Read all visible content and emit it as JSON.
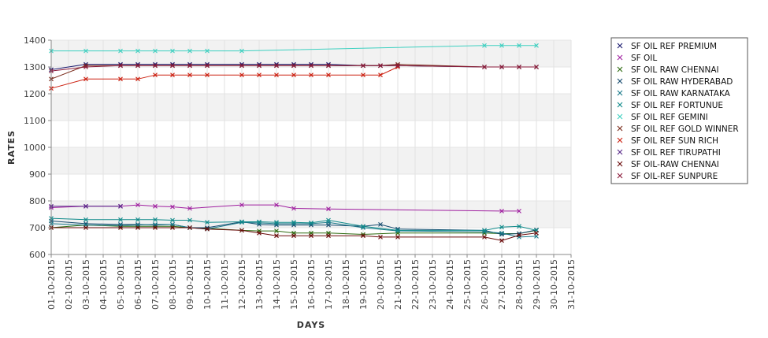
{
  "chart_data": {
    "type": "line",
    "xlabel": "DAYS",
    "ylabel": "RATES",
    "ylim": [
      600,
      1400
    ],
    "yticks": [
      600,
      700,
      800,
      900,
      1000,
      1100,
      1200,
      1300,
      1400
    ],
    "grid": "horizontal alternating bands, vertical lines",
    "legend_position": "right",
    "categories": [
      "01-10-2015",
      "02-10-2015",
      "03-10-2015",
      "04-10-2015",
      "05-10-2015",
      "06-10-2015",
      "07-10-2015",
      "08-10-2015",
      "09-10-2015",
      "10-10-2015",
      "11-10-2015",
      "12-10-2015",
      "13-10-2015",
      "14-10-2015",
      "15-10-2015",
      "16-10-2015",
      "17-10-2015",
      "18-10-2015",
      "19-10-2015",
      "20-10-2015",
      "21-10-2015",
      "22-10-2015",
      "23-10-2015",
      "24-10-2015",
      "25-10-2015",
      "26-10-2015",
      "27-10-2015",
      "28-10-2015",
      "29-10-2015",
      "30-10-2015",
      "31-10-2015"
    ],
    "series": [
      {
        "name": " SF OIL REF PREMIUM",
        "color": "#1a1a6e",
        "points": [
          [
            1,
            1290
          ],
          [
            3,
            1310
          ],
          [
            5,
            1310
          ],
          [
            6,
            1310
          ],
          [
            7,
            1310
          ],
          [
            8,
            1310
          ],
          [
            9,
            1310
          ],
          [
            10,
            1310
          ],
          [
            12,
            1310
          ],
          [
            13,
            1310
          ],
          [
            14,
            1310
          ],
          [
            15,
            1310
          ],
          [
            16,
            1310
          ],
          [
            17,
            1310
          ],
          [
            19,
            1305
          ],
          [
            20,
            1305
          ],
          [
            21,
            1305
          ],
          [
            26,
            1300
          ],
          [
            27,
            1300
          ],
          [
            28,
            1300
          ],
          [
            29,
            1300
          ]
        ]
      },
      {
        "name": "SF OIL",
        "color": "#a020a0",
        "points": [
          [
            1,
            775
          ],
          [
            3,
            780
          ],
          [
            5,
            780
          ],
          [
            6,
            785
          ],
          [
            7,
            780
          ],
          [
            8,
            778
          ],
          [
            9,
            772
          ],
          [
            12,
            785
          ],
          [
            14,
            785
          ],
          [
            15,
            772
          ],
          [
            17,
            770
          ],
          [
            27,
            762
          ],
          [
            28,
            762
          ]
        ]
      },
      {
        "name": "SF OIL RAW CHENNAI",
        "color": "#2e6b10",
        "points": [
          [
            1,
            700
          ],
          [
            3,
            710
          ],
          [
            5,
            705
          ],
          [
            6,
            705
          ],
          [
            7,
            705
          ],
          [
            8,
            705
          ],
          [
            9,
            700
          ],
          [
            10,
            698
          ],
          [
            12,
            690
          ],
          [
            13,
            688
          ],
          [
            14,
            688
          ],
          [
            15,
            680
          ],
          [
            16,
            680
          ],
          [
            17,
            680
          ],
          [
            19,
            675
          ],
          [
            21,
            680
          ],
          [
            26,
            680
          ],
          [
            27,
            678
          ],
          [
            28,
            678
          ],
          [
            29,
            690
          ]
        ]
      },
      {
        "name": "SF OIL RAW HYDERABAD",
        "color": "#154a6e",
        "points": [
          [
            1,
            725
          ],
          [
            3,
            715
          ],
          [
            5,
            712
          ],
          [
            6,
            712
          ],
          [
            7,
            710
          ],
          [
            8,
            712
          ],
          [
            9,
            700
          ],
          [
            10,
            700
          ],
          [
            12,
            722
          ],
          [
            13,
            712
          ],
          [
            14,
            710
          ],
          [
            15,
            710
          ],
          [
            16,
            710
          ],
          [
            17,
            710
          ],
          [
            19,
            705
          ],
          [
            20,
            712
          ],
          [
            21,
            695
          ],
          [
            26,
            690
          ],
          [
            27,
            675
          ],
          [
            28,
            678
          ],
          [
            29,
            692
          ]
        ]
      },
      {
        "name": "SF OIL RAW KARNATAKA",
        "color": "#1a7a8a",
        "points": [
          [
            1,
            715
          ],
          [
            3,
            710
          ],
          [
            5,
            708
          ],
          [
            6,
            710
          ],
          [
            7,
            712
          ],
          [
            8,
            712
          ],
          [
            9,
            700
          ],
          [
            10,
            695
          ],
          [
            12,
            720
          ],
          [
            13,
            718
          ],
          [
            14,
            715
          ],
          [
            15,
            715
          ],
          [
            16,
            715
          ],
          [
            17,
            720
          ],
          [
            19,
            700
          ],
          [
            21,
            688
          ],
          [
            26,
            685
          ],
          [
            27,
            680
          ],
          [
            28,
            665
          ],
          [
            29,
            668
          ]
        ]
      },
      {
        "name": "SF OIL REF FORTUNUE",
        "color": "#0f8a8a",
        "points": [
          [
            1,
            735
          ],
          [
            3,
            730
          ],
          [
            5,
            730
          ],
          [
            6,
            730
          ],
          [
            7,
            730
          ],
          [
            8,
            728
          ],
          [
            9,
            728
          ],
          [
            10,
            720
          ],
          [
            12,
            722
          ],
          [
            13,
            722
          ],
          [
            14,
            720
          ],
          [
            15,
            720
          ],
          [
            16,
            718
          ],
          [
            17,
            728
          ],
          [
            19,
            705
          ],
          [
            21,
            690
          ],
          [
            26,
            690
          ],
          [
            27,
            702
          ],
          [
            28,
            705
          ],
          [
            29,
            690
          ]
        ]
      },
      {
        "name": "SF OIL REF GEMINI",
        "color": "#3dd0c0",
        "points": [
          [
            1,
            1360
          ],
          [
            3,
            1360
          ],
          [
            5,
            1360
          ],
          [
            6,
            1360
          ],
          [
            7,
            1360
          ],
          [
            8,
            1360
          ],
          [
            9,
            1360
          ],
          [
            10,
            1360
          ],
          [
            12,
            1360
          ],
          [
            26,
            1380
          ],
          [
            27,
            1380
          ],
          [
            28,
            1380
          ],
          [
            29,
            1380
          ]
        ]
      },
      {
        "name": "SF OIL REF GOLD WINNER",
        "color": "#7a2a1a",
        "points": [
          [
            1,
            1255
          ],
          [
            3,
            1305
          ],
          [
            5,
            1305
          ],
          [
            6,
            1305
          ],
          [
            7,
            1305
          ],
          [
            8,
            1305
          ],
          [
            9,
            1305
          ],
          [
            10,
            1305
          ],
          [
            12,
            1305
          ],
          [
            13,
            1305
          ],
          [
            14,
            1305
          ],
          [
            15,
            1305
          ],
          [
            16,
            1305
          ],
          [
            17,
            1305
          ],
          [
            19,
            1305
          ],
          [
            20,
            1305
          ],
          [
            21,
            1310
          ],
          [
            26,
            1300
          ],
          [
            27,
            1300
          ],
          [
            28,
            1300
          ],
          [
            29,
            1300
          ]
        ]
      },
      {
        "name": "SF OIL REF SUN RICH",
        "color": "#cc2010",
        "points": [
          [
            1,
            1220
          ],
          [
            3,
            1255
          ],
          [
            5,
            1255
          ],
          [
            6,
            1255
          ],
          [
            7,
            1270
          ],
          [
            8,
            1270
          ],
          [
            9,
            1270
          ],
          [
            10,
            1270
          ],
          [
            12,
            1270
          ],
          [
            13,
            1270
          ],
          [
            14,
            1270
          ],
          [
            15,
            1270
          ],
          [
            16,
            1270
          ],
          [
            17,
            1270
          ],
          [
            19,
            1270
          ],
          [
            20,
            1270
          ],
          [
            21,
            1300
          ]
        ]
      },
      {
        "name": "SF OIL REF TIRUPATHI",
        "color": "#5a2a8a",
        "points": [
          [
            1,
            780
          ],
          [
            3,
            780
          ],
          [
            5,
            780
          ]
        ]
      },
      {
        "name": "SF OIL-RAW CHENNAI",
        "color": "#6a0a0a",
        "points": [
          [
            1,
            700
          ],
          [
            3,
            700
          ],
          [
            5,
            700
          ],
          [
            6,
            700
          ],
          [
            7,
            700
          ],
          [
            8,
            700
          ],
          [
            9,
            700
          ],
          [
            10,
            695
          ],
          [
            12,
            690
          ],
          [
            13,
            680
          ],
          [
            14,
            670
          ],
          [
            15,
            670
          ],
          [
            16,
            670
          ],
          [
            17,
            670
          ],
          [
            19,
            670
          ],
          [
            20,
            665
          ],
          [
            21,
            665
          ],
          [
            26,
            665
          ],
          [
            27,
            652
          ],
          [
            28,
            672
          ],
          [
            29,
            680
          ]
        ]
      },
      {
        "name": "SF OIL-REF SUNPURE",
        "color": "#8a1a3a",
        "points": [
          [
            1,
            1285
          ],
          [
            3,
            1300
          ],
          [
            5,
            1305
          ],
          [
            6,
            1305
          ],
          [
            7,
            1305
          ],
          [
            8,
            1305
          ],
          [
            9,
            1305
          ],
          [
            10,
            1305
          ],
          [
            12,
            1305
          ],
          [
            13,
            1305
          ],
          [
            14,
            1305
          ],
          [
            15,
            1305
          ],
          [
            16,
            1305
          ],
          [
            17,
            1305
          ],
          [
            19,
            1305
          ],
          [
            20,
            1305
          ],
          [
            21,
            1305
          ],
          [
            26,
            1300
          ],
          [
            27,
            1300
          ],
          [
            28,
            1300
          ],
          [
            29,
            1300
          ]
        ]
      }
    ]
  }
}
